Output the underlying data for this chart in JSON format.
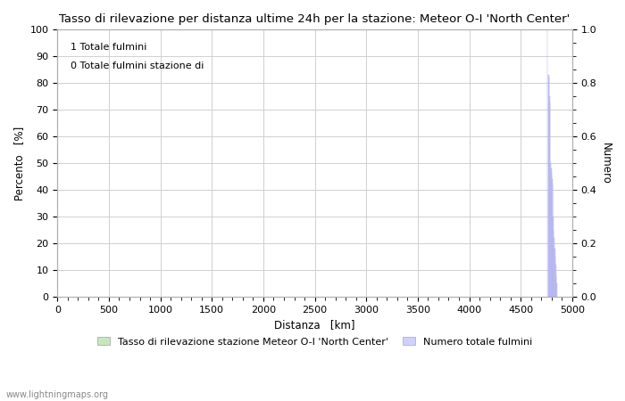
{
  "title": "Tasso di rilevazione per distanza ultime 24h per la stazione: Meteor O-I 'North Center'",
  "xlabel": "Distanza   [km]",
  "ylabel_left": "Percento   [%]",
  "ylabel_right": "Numero",
  "xlim": [
    0,
    5000
  ],
  "ylim_left": [
    0,
    100
  ],
  "ylim_right": [
    0,
    1.0
  ],
  "xticks": [
    0,
    500,
    1000,
    1500,
    2000,
    2500,
    3000,
    3500,
    4000,
    4500,
    5000
  ],
  "yticks_left": [
    0,
    10,
    20,
    30,
    40,
    50,
    60,
    70,
    80,
    90,
    100
  ],
  "yticks_right": [
    0.0,
    0.2,
    0.4,
    0.6,
    0.8,
    1.0
  ],
  "annotation_line1": "1 Totale fulmini",
  "annotation_line2": "0 Totale fulmini stazione di",
  "legend_label_left": "Tasso di rilevazione stazione Meteor O-I 'North Center'",
  "legend_label_right": "Numero totale fulmini",
  "legend_color_left": "#c8e6c0",
  "legend_color_right": "#d0d0ff",
  "watermark": "www.lightningmaps.org",
  "background_color": "#ffffff",
  "grid_color": "#d0d0d0",
  "bar_color": "#d0d0ff",
  "bar_edge_color": "#a8a8e8",
  "spike_centers": [
    4760,
    4770,
    4775,
    4780,
    4785,
    4790,
    4795,
    4800,
    4805,
    4810,
    4815,
    4820,
    4825,
    4830,
    4835,
    4840,
    4845,
    4850
  ],
  "spike_heights": [
    1.0,
    0.83,
    0.82,
    0.75,
    0.73,
    0.5,
    0.48,
    0.46,
    0.44,
    0.42,
    0.3,
    0.25,
    0.22,
    0.18,
    0.15,
    0.12,
    0.08,
    0.05
  ],
  "title_fontsize": 9.5,
  "axis_label_fontsize": 8.5,
  "tick_fontsize": 8,
  "annotation_fontsize": 8,
  "legend_fontsize": 8,
  "watermark_fontsize": 7
}
